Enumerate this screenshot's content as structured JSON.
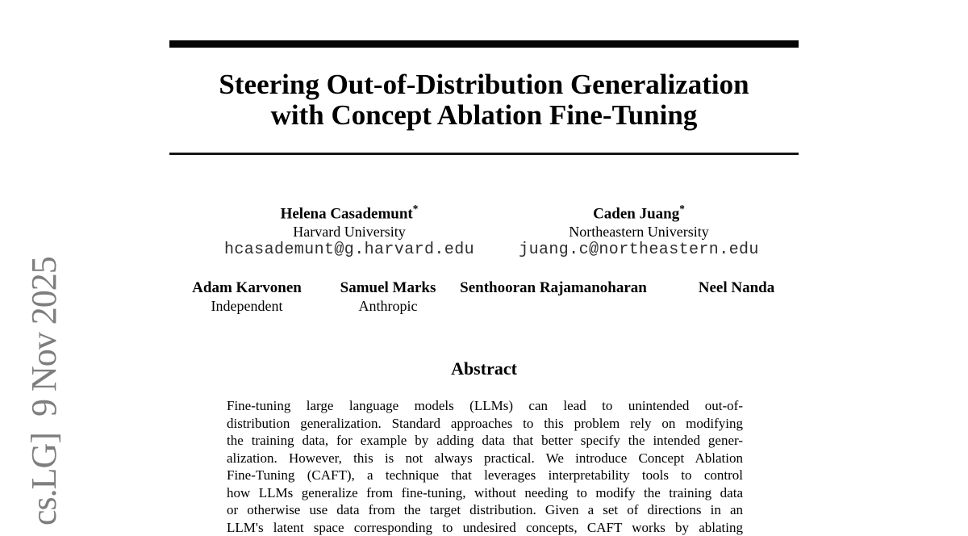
{
  "watermark": {
    "text": "cs.LG]  9 Nov 2025",
    "color": "#7e7e7e"
  },
  "title": {
    "line1": "Steering Out-of-Distribution Generalization",
    "line2": "with Concept Ablation Fine-Tuning"
  },
  "authors": {
    "row1": [
      {
        "name": "Helena Casademunt",
        "mark": "*",
        "affiliation": "Harvard University",
        "email": "hcasademunt@g.harvard.edu"
      },
      {
        "name": "Caden Juang",
        "mark": "*",
        "affiliation": "Northeastern University",
        "email": "juang.c@northeastern.edu"
      }
    ],
    "row2": [
      {
        "name": "Adam Karvonen",
        "affiliation": "Independent"
      },
      {
        "name": "Samuel Marks",
        "affiliation": "Anthropic"
      },
      {
        "name": "Senthooran Rajamanoharan",
        "affiliation": ""
      },
      {
        "name": "Neel Nanda",
        "affiliation": ""
      }
    ]
  },
  "abstract": {
    "heading": "Abstract",
    "lines": [
      "Fine-tuning large language models (LLMs) can lead to unintended out-of-",
      "distribution generalization. Standard approaches to this problem rely on modifying",
      "the training data, for example by adding data that better specify the intended gener-",
      "alization. However, this is not always practical. We introduce Concept Ablation",
      "Fine-Tuning (CAFT), a technique that leverages interpretability tools to control",
      "how LLMs generalize from fine-tuning, without needing to modify the training data",
      "or otherwise use data from the target distribution. Given a set of directions in an",
      "LLM's latent space corresponding to undesired concepts, CAFT works by ablating"
    ]
  }
}
